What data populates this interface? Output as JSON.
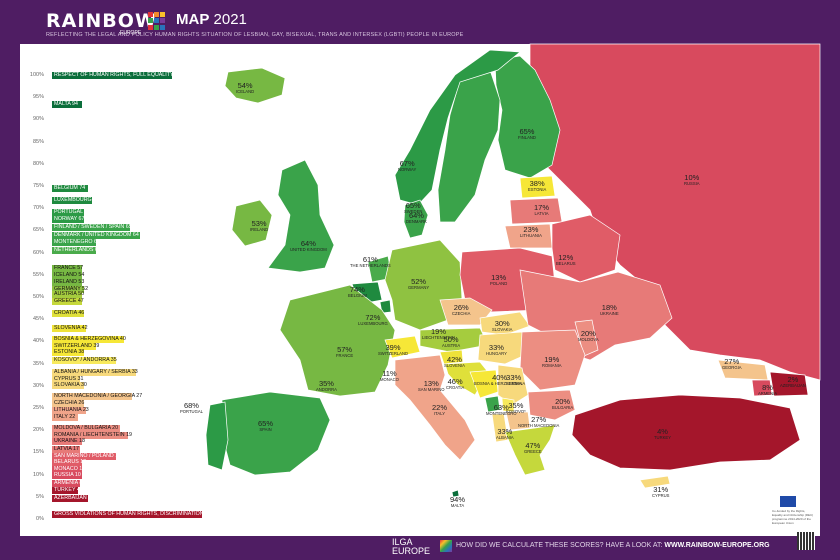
{
  "header": {
    "logo_text": "RAINBOW",
    "logo_sub": "EUROPE",
    "map_title_bold": "MAP",
    "map_title_year": "2021",
    "subtitle": "REFLECTING THE LEGAL AND POLICY HUMAN RIGHTS SITUATION OF LESBIAN, GAY, BISEXUAL, TRANS AND INTERSEX (LGBTI) PEOPLE IN EUROPE"
  },
  "scale": [
    "100%",
    "95%",
    "90%",
    "85%",
    "80%",
    "75%",
    "70%",
    "65%",
    "60%",
    "55%",
    "50%",
    "45%",
    "40%",
    "35%",
    "30%",
    "25%",
    "20%",
    "15%",
    "10%",
    "5%",
    "0%"
  ],
  "legend_bars": [
    {
      "label": "RESPECT OF HUMAN RIGHTS, FULL EQUALITY",
      "color": "#0b6e3b",
      "text": "#fff",
      "width": 120
    },
    {
      "label": "MALTA 94",
      "color": "#0b6e3b",
      "text": "#fff",
      "width": 30
    },
    {
      "label": "BELGIUM 74",
      "color": "#1f8a3f",
      "text": "#fff",
      "width": 36
    },
    {
      "label": "LUXEMBOURG 72",
      "color": "#1f8a3f",
      "text": "#fff",
      "width": 40
    },
    {
      "label": "PORTUGAL 68",
      "color": "#2c9a46",
      "text": "#fff",
      "width": 32
    },
    {
      "label": "NORWAY 67",
      "color": "#2c9a46",
      "text": "#fff",
      "width": 32
    },
    {
      "label": "FINLAND / SWEDEN / SPAIN 65",
      "color": "#3aa34a",
      "text": "#fff",
      "width": 78
    },
    {
      "label": "DENMARK / UNITED KINGDOM 64",
      "color": "#3aa34a",
      "text": "#fff",
      "width": 88
    },
    {
      "label": "MONTENEGRO 63",
      "color": "#3aa34a",
      "text": "#fff",
      "width": 44
    },
    {
      "label": "NETHERLANDS 61",
      "color": "#4aab4b",
      "text": "#fff",
      "width": 44
    },
    {
      "label": "FRANCE 57",
      "color": "#77b843",
      "text": "#111",
      "width": 30
    },
    {
      "label": "ICELAND 54",
      "color": "#77b843",
      "text": "#111",
      "width": 30
    },
    {
      "label": "IRELAND 53",
      "color": "#77b843",
      "text": "#111",
      "width": 30
    },
    {
      "label": "GERMANY 52",
      "color": "#8fc241",
      "text": "#111",
      "width": 32
    },
    {
      "label": "AUSTRIA 50",
      "color": "#a5cc3e",
      "text": "#111",
      "width": 30
    },
    {
      "label": "GREECE 47",
      "color": "#c5d83c",
      "text": "#111",
      "width": 30
    },
    {
      "label": "CROATIA 46",
      "color": "#dfe03a",
      "text": "#111",
      "width": 32
    },
    {
      "label": "SLOVENIA 42",
      "color": "#eee23a",
      "text": "#111",
      "width": 34
    },
    {
      "label": "BOSNIA & HERZEGOVINA 40",
      "color": "#f6e737",
      "text": "#111",
      "width": 72
    },
    {
      "label": "SWITZERLAND 39",
      "color": "#f6e737",
      "text": "#111",
      "width": 44
    },
    {
      "label": "ESTONIA 38",
      "color": "#f6e737",
      "text": "#111",
      "width": 32
    },
    {
      "label": "KOSOVO* / ANDORRA 35",
      "color": "#f8ea5c",
      "text": "#111",
      "width": 64
    },
    {
      "label": "ALBANIA / HUNGARY / SERBIA 33",
      "color": "#f7d97c",
      "text": "#111",
      "width": 84
    },
    {
      "label": "CYPRUS 31",
      "color": "#f7d97c",
      "text": "#111",
      "width": 28
    },
    {
      "label": "SLOVAKIA 30",
      "color": "#f7d97c",
      "text": "#111",
      "width": 32
    },
    {
      "label": "NORTH MACEDONIA / GEORGIA 27",
      "color": "#f4c48c",
      "text": "#111",
      "width": 80
    },
    {
      "label": "CZECHIA 26",
      "color": "#f4c48c",
      "text": "#111",
      "width": 32
    },
    {
      "label": "LITHUANIA 23",
      "color": "#f0a48a",
      "text": "#111",
      "width": 34
    },
    {
      "label": "ITALY 22",
      "color": "#f0a48a",
      "text": "#111",
      "width": 26
    },
    {
      "label": "MOLDOVA / BULGARIA 20",
      "color": "#ec8e82",
      "text": "#111",
      "width": 68
    },
    {
      "label": "ROMANIA / LIECHTENSTEIN 19",
      "color": "#ec8e82",
      "text": "#111",
      "width": 76
    },
    {
      "label": "UKRAINE 18",
      "color": "#e77a78",
      "text": "#111",
      "width": 30
    },
    {
      "label": "LATVIA 17",
      "color": "#e77a78",
      "text": "#111",
      "width": 28
    },
    {
      "label": "SAN MARINO / POLAND 13",
      "color": "#e05c67",
      "text": "#fff",
      "width": 64
    },
    {
      "label": "BELARUS 12",
      "color": "#e05c67",
      "text": "#fff",
      "width": 30
    },
    {
      "label": "MONACO 11",
      "color": "#db4f60",
      "text": "#fff",
      "width": 30
    },
    {
      "label": "RUSSIA 10",
      "color": "#d84a5e",
      "text": "#fff",
      "width": 30
    },
    {
      "label": "ARMENIA 8",
      "color": "#d84a5e",
      "text": "#fff",
      "width": 28
    },
    {
      "label": "TURKEY 4",
      "color": "#a4162b",
      "text": "#fff",
      "width": 26
    },
    {
      "label": "AZERBAIJAN 2",
      "color": "#a4162b",
      "text": "#fff",
      "width": 36
    },
    {
      "label": "GROSS VIOLATIONS OF HUMAN RIGHTS, DISCRIMINATION",
      "color": "#a4162b",
      "text": "#fff",
      "width": 150
    }
  ],
  "countries": [
    {
      "name": "ICELAND",
      "pct": "54%"
    },
    {
      "name": "NORWAY",
      "pct": "67%"
    },
    {
      "name": "SWEDEN",
      "pct": "65%"
    },
    {
      "name": "FINLAND",
      "pct": "65%"
    },
    {
      "name": "RUSSIA",
      "pct": "10%"
    },
    {
      "name": "ESTONIA",
      "pct": "38%"
    },
    {
      "name": "LATVIA",
      "pct": "17%"
    },
    {
      "name": "LITHUANIA",
      "pct": "23%"
    },
    {
      "name": "BELARUS",
      "pct": "12%"
    },
    {
      "name": "DENMARK",
      "pct": "64%"
    },
    {
      "name": "IRELAND",
      "pct": "53%"
    },
    {
      "name": "UNITED KINGDOM",
      "pct": "64%"
    },
    {
      "name": "THE NETHERLANDS",
      "pct": "61%"
    },
    {
      "name": "BELGIUM",
      "pct": "74%"
    },
    {
      "name": "LUXEMBOURG",
      "pct": "72%"
    },
    {
      "name": "GERMANY",
      "pct": "52%"
    },
    {
      "name": "POLAND",
      "pct": "13%"
    },
    {
      "name": "UKRAINE",
      "pct": "18%"
    },
    {
      "name": "CZECHIA",
      "pct": "26%"
    },
    {
      "name": "SLOVAKIA",
      "pct": "30%"
    },
    {
      "name": "FRANCE",
      "pct": "57%"
    },
    {
      "name": "LIECHTENSTEIN",
      "pct": "19%"
    },
    {
      "name": "SWITZERLAND",
      "pct": "39%"
    },
    {
      "name": "AUSTRIA",
      "pct": "50%"
    },
    {
      "name": "HUNGARY",
      "pct": "33%"
    },
    {
      "name": "MOLDOVA",
      "pct": "20%"
    },
    {
      "name": "ROMANIA",
      "pct": "19%"
    },
    {
      "name": "SLOVENIA",
      "pct": "42%"
    },
    {
      "name": "CROATIA",
      "pct": "46%"
    },
    {
      "name": "BOSNIA & HERZEGOVINA",
      "pct": "40%"
    },
    {
      "name": "SERBIA",
      "pct": "33%"
    },
    {
      "name": "MONACO",
      "pct": "11%"
    },
    {
      "name": "SAN MARINO",
      "pct": "13%"
    },
    {
      "name": "ANDORRA",
      "pct": "35%"
    },
    {
      "name": "PORTUGAL",
      "pct": "68%"
    },
    {
      "name": "SPAIN",
      "pct": "65%"
    },
    {
      "name": "ITALY",
      "pct": "22%"
    },
    {
      "name": "MONTENEGRO",
      "pct": "63%"
    },
    {
      "name": "KOSOVO*",
      "pct": "35%"
    },
    {
      "name": "NORTH MACEDONIA",
      "pct": "27%"
    },
    {
      "name": "ALBANIA",
      "pct": "33%"
    },
    {
      "name": "BULGARIA",
      "pct": "20%"
    },
    {
      "name": "GREECE",
      "pct": "47%"
    },
    {
      "name": "TURKEY",
      "pct": "4%"
    },
    {
      "name": "GEORGIA",
      "pct": "27%"
    },
    {
      "name": "ARMENIA",
      "pct": "8%"
    },
    {
      "name": "AZERBAIJAN",
      "pct": "2%"
    },
    {
      "name": "MALTA",
      "pct": "94%"
    },
    {
      "name": "CYPRUS",
      "pct": "31%"
    }
  ],
  "footer": {
    "org_line1": "ILGA",
    "org_line2": "EUROPE",
    "question": "HOW DID WE CALCULATE THESE SCORES? HAVE A LOOK AT:",
    "url": "WWW.RAINBOW-EUROPE.ORG",
    "eu_note": "Co-funded by the Rights, Equality and Citizenship (REC) programme 2014-2020 of the European Union"
  },
  "colors": {
    "background": "#4f1d63",
    "panel": "#ffffff",
    "high": "#0b6e3b",
    "low": "#a4162b"
  }
}
